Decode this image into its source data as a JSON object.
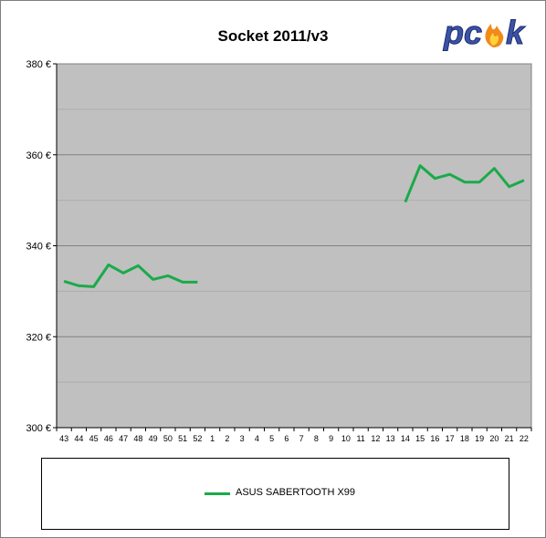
{
  "chart_data": {
    "type": "line",
    "title": "Socket 2011/v3",
    "xlabel": "",
    "ylabel": "",
    "ylim": [
      300,
      380
    ],
    "yticks": [
      300,
      320,
      340,
      360,
      380
    ],
    "ytick_labels": [
      "300 €",
      "320 €",
      "340 €",
      "360 €",
      "380 €"
    ],
    "grid": true,
    "legend": "bottom",
    "categories": [
      "43",
      "44",
      "45",
      "46",
      "47",
      "48",
      "49",
      "50",
      "51",
      "52",
      "1",
      "2",
      "3",
      "4",
      "5",
      "6",
      "7",
      "8",
      "9",
      "10",
      "11",
      "12",
      "13",
      "14",
      "15",
      "16",
      "17",
      "18",
      "19",
      "20",
      "21",
      "22"
    ],
    "series": [
      {
        "name": "ASUS SABERTOOTH X99",
        "color": "#1aaa4a",
        "values": [
          332.2,
          331.2,
          331.0,
          335.8,
          334.0,
          335.6,
          332.6,
          333.4,
          332.0,
          332.0,
          null,
          null,
          null,
          null,
          null,
          null,
          null,
          null,
          null,
          null,
          null,
          null,
          null,
          349.6,
          357.6,
          354.8,
          355.7,
          354.0,
          354.0,
          357.0,
          353.0,
          354.4
        ]
      }
    ]
  },
  "logo": {
    "text": "pcšk",
    "icon": "flame-icon",
    "color": "#3b52a6"
  }
}
